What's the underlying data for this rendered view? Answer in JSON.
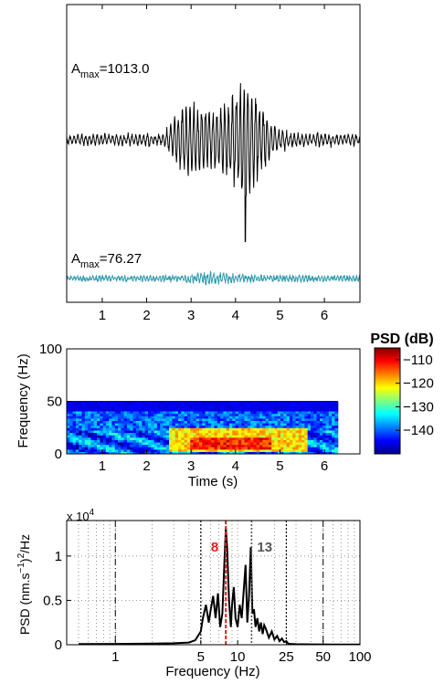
{
  "chart_data": [
    {
      "type": "line",
      "panel": "waveform",
      "xlim": [
        0.2,
        6.8
      ],
      "xticks": [
        "1",
        "2",
        "3",
        "4",
        "5",
        "6"
      ],
      "grid": false,
      "series": [
        {
          "color": "#000000",
          "amax_label": "A",
          "amax_sub": "max",
          "amax_value": "=1013.0",
          "envelope": {
            "t": [
              0.2,
              2.4,
              2.6,
              2.9,
              3.2,
              3.6,
              3.8,
              4.0,
              4.2,
              4.4,
              4.6,
              4.8,
              5.0,
              5.3,
              6.8
            ],
            "amp": [
              0.08,
              0.09,
              0.35,
              0.62,
              0.58,
              0.48,
              0.72,
              0.8,
              1.0,
              0.92,
              0.55,
              0.28,
              0.16,
              0.1,
              0.08
            ]
          },
          "spike": {
            "t": 4.22,
            "amp": -1.55
          }
        },
        {
          "color": "#2e9aad",
          "amax_label": "A",
          "amax_sub": "max",
          "amax_value": "=76.27",
          "envelope": {
            "t": [
              0.2,
              2.8,
              3.4,
              3.8,
              4.4,
              6.8
            ],
            "amp": [
              0.35,
              0.45,
              0.9,
              0.7,
              0.5,
              0.4
            ]
          }
        }
      ]
    },
    {
      "type": "heatmap",
      "panel": "spectrogram",
      "ylabel": "Frequency (Hz)",
      "xlabel": "Time (s)",
      "xlim": [
        0.2,
        6.8
      ],
      "ylim": [
        0,
        100
      ],
      "xticks": [
        "1",
        "2",
        "3",
        "4",
        "5",
        "6"
      ],
      "yticks": [
        "0",
        "50",
        "100"
      ],
      "data_fmax": 50,
      "hot_region": {
        "t": [
          2.5,
          5.6
        ],
        "f": [
          2,
          25
        ],
        "peak_t": [
          3.0,
          4.8
        ],
        "peak_f": [
          4,
          16
        ]
      },
      "colorbar": {
        "title": "PSD (dB)",
        "range": [
          -150,
          -105
        ],
        "ticks": [
          "−110",
          "−120",
          "−130",
          "−140"
        ],
        "tick_values": [
          -110,
          -120,
          -130,
          -140
        ]
      }
    },
    {
      "type": "line",
      "panel": "psd",
      "xscale": "log",
      "xlim": [
        0.4,
        100
      ],
      "ylim": [
        0,
        14000
      ],
      "xlabel": "Frequency (Hz)",
      "ylabel": "PSD (nm.s⁻¹)²/Hz",
      "ylabel_parts": [
        "PSD (nm.s",
        "−1",
        ")",
        "2",
        "/Hz"
      ],
      "exponent_label": "x 10",
      "exponent_power": "4",
      "xticks": [
        "1",
        "5",
        "10",
        "25",
        "50",
        "100"
      ],
      "xtick_values": [
        1,
        5,
        10,
        25,
        50,
        100
      ],
      "yticks": [
        "0",
        "0.5",
        "1"
      ],
      "ytick_values": [
        0,
        5000,
        10000
      ],
      "grid": true,
      "dashdot_lines": [
        1,
        50
      ],
      "dotted_lines": [
        5,
        25
      ],
      "markers": [
        {
          "label": "8",
          "x": 8,
          "color": "#e02020"
        },
        {
          "label": "13",
          "x": 13,
          "color": "#555555"
        }
      ],
      "series": [
        {
          "color": "#000000",
          "x": [
            0.5,
            1,
            2,
            3,
            4,
            4.5,
            5.0,
            5.2,
            5.5,
            5.8,
            6.0,
            6.3,
            6.6,
            6.9,
            7.2,
            7.5,
            7.8,
            8.0,
            8.2,
            8.5,
            8.8,
            9.0,
            9.3,
            9.6,
            10.0,
            10.4,
            10.8,
            11.2,
            11.6,
            12.0,
            12.4,
            12.8,
            13.2,
            13.6,
            14.0,
            14.5,
            15.0,
            15.5,
            16.0,
            16.5,
            17,
            18,
            19,
            20,
            21,
            22,
            23,
            24,
            25,
            26,
            30,
            40,
            60,
            100
          ],
          "y": [
            80,
            90,
            120,
            160,
            250,
            500,
            1500,
            3000,
            4500,
            2500,
            3800,
            5500,
            3000,
            5800,
            2000,
            3500,
            9500,
            13200,
            11000,
            5000,
            2000,
            4500,
            6500,
            3000,
            2000,
            4500,
            3000,
            6000,
            9000,
            2500,
            5500,
            11000,
            3500,
            4000,
            2000,
            3000,
            1500,
            2500,
            1200,
            2200,
            1800,
            800,
            1500,
            600,
            1000,
            400,
            700,
            300,
            400,
            100,
            60,
            40,
            30,
            20
          ]
        }
      ]
    }
  ]
}
